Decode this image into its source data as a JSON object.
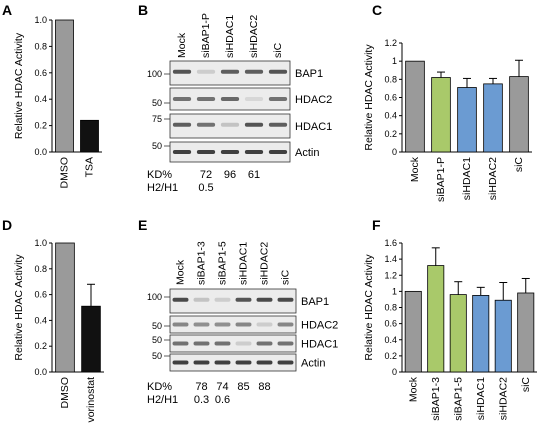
{
  "panels": {
    "A": {
      "letter": "A"
    },
    "B": {
      "letter": "B"
    },
    "C": {
      "letter": "C"
    },
    "D": {
      "letter": "D"
    },
    "E": {
      "letter": "E"
    },
    "F": {
      "letter": "F"
    }
  },
  "colors": {
    "gray": "#9a9a9a",
    "black": "#111111",
    "green": "#a9c96a",
    "blue": "#6b9bd2"
  },
  "blotB": {
    "lanes": [
      "Mock",
      "siBAP1-P",
      "siHDAC1",
      "siHDAC2",
      "siC"
    ],
    "bands": [
      "BAP1",
      "HDAC2",
      "HDAC1",
      "Actin"
    ],
    "markers": [
      "100",
      "50",
      "75",
      "50"
    ],
    "kd_label": "KD%",
    "kd_values": [
      "72",
      "96",
      "61"
    ],
    "ratio_label": "H2/H1",
    "ratio_values": [
      "0.5"
    ]
  },
  "blotE": {
    "lanes": [
      "Mock",
      "siBAP1-3",
      "siBAP1-5",
      "siHDAC1",
      "siHDAC2",
      "siC"
    ],
    "bands": [
      "BAP1",
      "HDAC2",
      "HDAC1",
      "Actin"
    ],
    "markers": [
      "100",
      "50",
      "50",
      "50"
    ],
    "kd_label": "KD%",
    "kd_values": [
      "78",
      "74",
      "85",
      "88"
    ],
    "ratio_label": "H2/H1",
    "ratio_values": [
      "0.3",
      "0.6"
    ]
  },
  "chart_data": [
    {
      "panel": "A",
      "type": "bar",
      "categories": [
        "DMSO",
        "TSA"
      ],
      "values": [
        1.0,
        0.24
      ],
      "errors": [
        0,
        0
      ],
      "colors": [
        "#9a9a9a",
        "#111111"
      ],
      "ylabel": "Relative HDAC Activity",
      "ylim": [
        0,
        1.0
      ],
      "yticks": [
        "0.0",
        "0.2",
        "0.4",
        "0.6",
        "0.8",
        "1.0"
      ],
      "grid": false
    },
    {
      "panel": "C",
      "type": "bar",
      "categories": [
        "Mock",
        "siBAP1-P",
        "siHDAC1",
        "siHDAC2",
        "siC"
      ],
      "values": [
        1.0,
        0.82,
        0.71,
        0.75,
        0.83
      ],
      "errors": [
        0,
        0.06,
        0.1,
        0.06,
        0.18
      ],
      "colors": [
        "#9a9a9a",
        "#a9c96a",
        "#6b9bd2",
        "#6b9bd2",
        "#9a9a9a"
      ],
      "ylabel": "Relative HDAC Activity",
      "ylim": [
        0,
        1.2
      ],
      "yticks": [
        "0",
        "0.2",
        "0.4",
        "0.6",
        "0.8",
        "1",
        "1.2"
      ],
      "grid": false
    },
    {
      "panel": "D",
      "type": "bar",
      "categories": [
        "DMSO",
        "vorinostat"
      ],
      "values": [
        1.0,
        0.51
      ],
      "errors": [
        0,
        0.17
      ],
      "colors": [
        "#9a9a9a",
        "#111111"
      ],
      "ylabel": "Relative HDAC Activity",
      "ylim": [
        0,
        1.0
      ],
      "yticks": [
        "0.0",
        "0.2",
        "0.4",
        "0.6",
        "0.8",
        "1.0"
      ],
      "grid": false
    },
    {
      "panel": "F",
      "type": "bar",
      "categories": [
        "Mock",
        "siBAP1-3",
        "siBAP1-5",
        "siHDAC1",
        "siHDAC2",
        "siC"
      ],
      "values": [
        1.0,
        1.32,
        0.96,
        0.95,
        0.89,
        0.98
      ],
      "errors": [
        0,
        0.22,
        0.16,
        0.1,
        0.22,
        0.18
      ],
      "colors": [
        "#9a9a9a",
        "#a9c96a",
        "#a9c96a",
        "#6b9bd2",
        "#6b9bd2",
        "#9a9a9a"
      ],
      "ylabel": "Relative HDAC Activity",
      "ylim": [
        0,
        1.6
      ],
      "yticks": [
        "0",
        "0.2",
        "0.4",
        "0.6",
        "0.8",
        "1",
        "1.2",
        "1.4",
        "1.6"
      ],
      "grid": false
    }
  ]
}
